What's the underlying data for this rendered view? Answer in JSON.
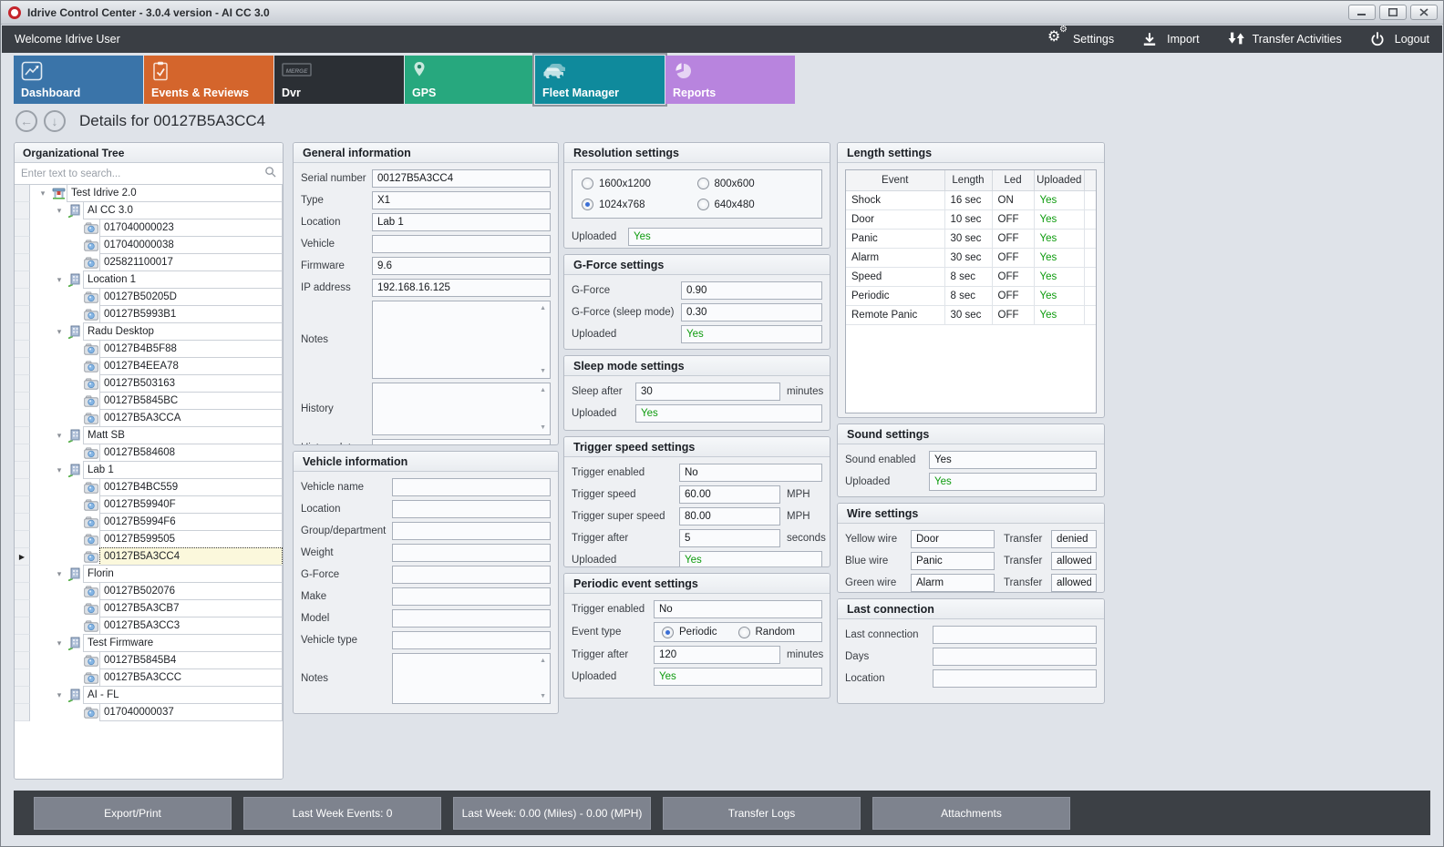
{
  "window": {
    "title": "Idrive Control Center - 3.0.4 version - AI CC 3.0"
  },
  "toolbar": {
    "welcome": "Welcome Idrive User",
    "actions": [
      {
        "id": "settings",
        "label": "Settings",
        "icon": "gears-icon"
      },
      {
        "id": "import",
        "label": "Import",
        "icon": "import-icon"
      },
      {
        "id": "transfer-activities",
        "label": "Transfer Activities",
        "icon": "transfer-icon"
      },
      {
        "id": "logout",
        "label": "Logout",
        "icon": "power-icon"
      }
    ]
  },
  "tabs": [
    {
      "id": "dashboard",
      "label": "Dashboard",
      "color": "#3a74a9",
      "icon": "dashboard-icon",
      "selected": false
    },
    {
      "id": "events-reviews",
      "label": "Events & Reviews",
      "color": "#d4652c",
      "icon": "events-icon",
      "selected": false
    },
    {
      "id": "dvr",
      "label": "Dvr",
      "color": "#2b2f34",
      "icon": "dvr-icon",
      "selected": false
    },
    {
      "id": "gps",
      "label": "GPS",
      "color": "#27a87e",
      "icon": "gps-icon",
      "selected": false
    },
    {
      "id": "fleet-manager",
      "label": "Fleet Manager",
      "color": "#0f8a9c",
      "icon": "fleet-icon",
      "selected": true
    },
    {
      "id": "reports",
      "label": "Reports",
      "color": "#b884de",
      "icon": "reports-icon",
      "selected": false
    }
  ],
  "details": {
    "title": "Details for 00127B5A3CC4"
  },
  "org_tree": {
    "title": "Organizational Tree",
    "search_placeholder": "Enter text to search...",
    "nodes": [
      {
        "level": 0,
        "type": "org",
        "label": "Test Idrive 2.0"
      },
      {
        "level": 1,
        "type": "group",
        "label": "AI CC 3.0"
      },
      {
        "level": 2,
        "type": "device",
        "label": "017040000023"
      },
      {
        "level": 2,
        "type": "device",
        "label": "017040000038"
      },
      {
        "level": 2,
        "type": "device",
        "label": "025821100017"
      },
      {
        "level": 1,
        "type": "group",
        "label": "Location 1"
      },
      {
        "level": 2,
        "type": "device",
        "label": "00127B50205D"
      },
      {
        "level": 2,
        "type": "device",
        "label": "00127B5993B1"
      },
      {
        "level": 1,
        "type": "group",
        "label": "Radu Desktop"
      },
      {
        "level": 2,
        "type": "device",
        "label": "00127B4B5F88"
      },
      {
        "level": 2,
        "type": "device",
        "label": "00127B4EEA78"
      },
      {
        "level": 2,
        "type": "device",
        "label": "00127B503163"
      },
      {
        "level": 2,
        "type": "device",
        "label": "00127B5845BC"
      },
      {
        "level": 2,
        "type": "device",
        "label": "00127B5A3CCA"
      },
      {
        "level": 1,
        "type": "group",
        "label": "Matt SB"
      },
      {
        "level": 2,
        "type": "device",
        "label": "00127B584608"
      },
      {
        "level": 1,
        "type": "group",
        "label": "Lab 1"
      },
      {
        "level": 2,
        "type": "device",
        "label": "00127B4BC559"
      },
      {
        "level": 2,
        "type": "device",
        "label": "00127B59940F"
      },
      {
        "level": 2,
        "type": "device",
        "label": "00127B5994F6"
      },
      {
        "level": 2,
        "type": "device",
        "label": "00127B599505"
      },
      {
        "level": 2,
        "type": "device",
        "label": "00127B5A3CC4",
        "selected": true
      },
      {
        "level": 1,
        "type": "group",
        "label": "Florin"
      },
      {
        "level": 2,
        "type": "device",
        "label": "00127B502076"
      },
      {
        "level": 2,
        "type": "device",
        "label": "00127B5A3CB7"
      },
      {
        "level": 2,
        "type": "device",
        "label": "00127B5A3CC3"
      },
      {
        "level": 1,
        "type": "group",
        "label": "Test Firmware"
      },
      {
        "level": 2,
        "type": "device",
        "label": "00127B5845B4"
      },
      {
        "level": 2,
        "type": "device",
        "label": "00127B5A3CCC"
      },
      {
        "level": 1,
        "type": "group",
        "label": "AI - FL"
      },
      {
        "level": 2,
        "type": "device",
        "label": "017040000037"
      }
    ]
  },
  "panels": {
    "general_information": {
      "title": "General information",
      "rows": [
        {
          "kind": "text",
          "label": "Serial number",
          "value": "00127B5A3CC4"
        },
        {
          "kind": "text",
          "label": "Type",
          "value": "X1"
        },
        {
          "kind": "text",
          "label": "Location",
          "value": "Lab 1"
        },
        {
          "kind": "text",
          "label": "Vehicle",
          "value": ""
        },
        {
          "kind": "text",
          "label": "Firmware",
          "value": "9.6"
        },
        {
          "kind": "text",
          "label": "IP address",
          "value": "192.168.16.125"
        },
        {
          "kind": "textarea",
          "label": "Notes",
          "value": "",
          "size": "lg"
        },
        {
          "kind": "textarea",
          "label": "History",
          "value": "",
          "size": "md"
        },
        {
          "kind": "text",
          "label": "History date",
          "value": ""
        }
      ]
    },
    "vehicle_information": {
      "title": "Vehicle information",
      "rows": [
        {
          "kind": "text",
          "label": "Vehicle name",
          "value": ""
        },
        {
          "kind": "text",
          "label": "Location",
          "value": ""
        },
        {
          "kind": "text",
          "label": "Group/department",
          "value": ""
        },
        {
          "kind": "text",
          "label": "Weight",
          "value": ""
        },
        {
          "kind": "text",
          "label": "G-Force",
          "value": ""
        },
        {
          "kind": "text",
          "label": "Make",
          "value": ""
        },
        {
          "kind": "text",
          "label": "Model",
          "value": ""
        },
        {
          "kind": "text",
          "label": "Vehicle type",
          "value": ""
        },
        {
          "kind": "textarea",
          "label": "Notes",
          "value": "",
          "size": "sm"
        }
      ]
    },
    "resolution_settings": {
      "title": "Resolution settings",
      "rows": [
        {
          "kind": "radio-grid",
          "options": [
            {
              "label": "1600x1200",
              "checked": false
            },
            {
              "label": "800x600",
              "checked": false
            },
            {
              "label": "1024x768",
              "checked": true
            },
            {
              "label": "640x480",
              "checked": false
            }
          ]
        },
        {
          "kind": "status",
          "label": "Uploaded",
          "value": "Yes"
        }
      ]
    },
    "gforce_settings": {
      "title": "G-Force settings",
      "rows": [
        {
          "kind": "text",
          "label": "G-Force",
          "value": "0.90"
        },
        {
          "kind": "text",
          "label": "G-Force (sleep mode)",
          "value": "0.30"
        },
        {
          "kind": "status",
          "label": "Uploaded",
          "value": "Yes"
        }
      ]
    },
    "sleep_mode_settings": {
      "title": "Sleep mode settings",
      "rows": [
        {
          "kind": "text",
          "label": "Sleep after",
          "value": "30",
          "suffix": "minutes"
        },
        {
          "kind": "status",
          "label": "Uploaded",
          "value": "Yes"
        }
      ]
    },
    "trigger_speed_settings": {
      "title": "Trigger speed settings",
      "rows": [
        {
          "kind": "text",
          "label": "Trigger enabled",
          "value": "No"
        },
        {
          "kind": "text",
          "label": "Trigger speed",
          "value": "60.00",
          "suffix": "MPH"
        },
        {
          "kind": "text",
          "label": "Trigger super speed",
          "value": "80.00",
          "suffix": "MPH"
        },
        {
          "kind": "text",
          "label": "Trigger after",
          "value": "5",
          "suffix": "seconds"
        },
        {
          "kind": "status",
          "label": "Uploaded",
          "value": "Yes"
        }
      ]
    },
    "periodic_event_settings": {
      "title": "Periodic event settings",
      "rows": [
        {
          "kind": "text",
          "label": "Trigger enabled",
          "value": "No"
        },
        {
          "kind": "radio-inline",
          "label": "Event type",
          "options": [
            {
              "label": "Periodic",
              "checked": true
            },
            {
              "label": "Random",
              "checked": false
            }
          ]
        },
        {
          "kind": "text",
          "label": "Trigger after",
          "value": "120",
          "suffix": "minutes"
        },
        {
          "kind": "status",
          "label": "Uploaded",
          "value": "Yes"
        }
      ]
    },
    "length_settings": {
      "title": "Length settings",
      "columns": [
        "Event",
        "Length",
        "Led",
        "Uploaded"
      ],
      "rows_table": [
        [
          "Shock",
          "16 sec",
          "ON",
          "Yes"
        ],
        [
          "Door",
          "10 sec",
          "OFF",
          "Yes"
        ],
        [
          "Panic",
          "30 sec",
          "OFF",
          "Yes"
        ],
        [
          "Alarm",
          "30 sec",
          "OFF",
          "Yes"
        ],
        [
          "Speed",
          "8 sec",
          "OFF",
          "Yes"
        ],
        [
          "Periodic",
          "8 sec",
          "OFF",
          "Yes"
        ],
        [
          "Remote Panic",
          "30 sec",
          "OFF",
          "Yes"
        ]
      ]
    },
    "sound_settings": {
      "title": "Sound settings",
      "rows": [
        {
          "kind": "text",
          "label": "Sound enabled",
          "value": "Yes"
        },
        {
          "kind": "status",
          "label": "Uploaded",
          "value": "Yes"
        }
      ]
    },
    "wire_settings": {
      "title": "Wire settings",
      "rows": [
        {
          "kind": "pair",
          "label": "Yellow wire",
          "value": "Door",
          "label2": "Transfer",
          "value2": "denied"
        },
        {
          "kind": "pair",
          "label": "Blue wire",
          "value": "Panic",
          "label2": "Transfer",
          "value2": "allowed"
        },
        {
          "kind": "pair",
          "label": "Green wire",
          "value": "Alarm",
          "label2": "Transfer",
          "value2": "allowed"
        }
      ]
    },
    "last_connection": {
      "title": "Last connection",
      "rows": [
        {
          "kind": "text",
          "label": "Last connection",
          "value": ""
        },
        {
          "kind": "text",
          "label": "Days",
          "value": ""
        },
        {
          "kind": "text",
          "label": "Location",
          "value": ""
        }
      ]
    }
  },
  "footer": {
    "buttons": [
      "Export/Print",
      "Last Week Events: 0",
      "Last Week: 0.00 (Miles) - 0.00 (MPH)",
      "Transfer Logs",
      "Attachments"
    ]
  },
  "colors": {
    "uploaded_yes": "#0d9b0d",
    "selected_row": "#fbf8dc"
  }
}
